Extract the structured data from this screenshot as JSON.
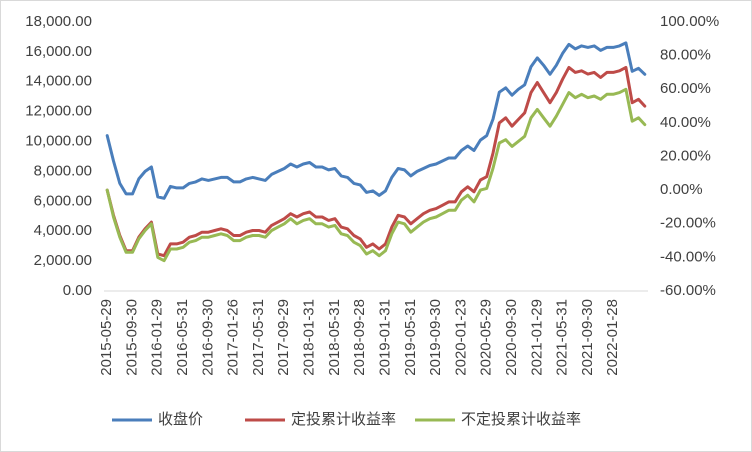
{
  "chart_data": {
    "type": "line",
    "categories": [
      "2015-05-29",
      null,
      null,
      null,
      "2015-09-30",
      null,
      null,
      null,
      "2016-01-29",
      null,
      null,
      null,
      "2016-05-31",
      null,
      null,
      null,
      "2016-09-30",
      null,
      null,
      null,
      "2017-01-26",
      null,
      null,
      null,
      "2017-05-31",
      null,
      null,
      null,
      "2017-09-29",
      null,
      null,
      null,
      "2018-01-31",
      null,
      null,
      null,
      "2018-05-31",
      null,
      null,
      null,
      "2018-09-28",
      null,
      null,
      null,
      "2019-01-31",
      null,
      null,
      null,
      "2019-05-31",
      null,
      null,
      null,
      "2019-09-30",
      null,
      null,
      null,
      "2020-01-23",
      null,
      null,
      null,
      "2020-05-29",
      null,
      null,
      null,
      "2020-09-30",
      null,
      null,
      null,
      "2021-01-29",
      null,
      null,
      null,
      "2021-05-31",
      null,
      null,
      null,
      "2021-09-30",
      null,
      null,
      null,
      "2022-01-28",
      null,
      null,
      null,
      null,
      null
    ],
    "series": [
      {
        "name": "收盘价",
        "color": "#4a7ebb",
        "values": [
          10400,
          8700,
          7200,
          6500,
          6500,
          7500,
          8000,
          8300,
          6300,
          6200,
          7000,
          6900,
          6900,
          7200,
          7300,
          7500,
          7400,
          7500,
          7600,
          7600,
          7300,
          7300,
          7500,
          7600,
          7500,
          7400,
          7800,
          8000,
          8200,
          8500,
          8300,
          8500,
          8600,
          8300,
          8300,
          8100,
          8200,
          7700,
          7600,
          7200,
          7100,
          6600,
          6700,
          6400,
          6700,
          7600,
          8200,
          8100,
          7700,
          8000,
          8200,
          8400,
          8500,
          8700,
          8900,
          8900,
          9400,
          9700,
          9400,
          10100,
          10400,
          11500,
          13300,
          13600,
          13100,
          13500,
          13800,
          15000,
          15600,
          15100,
          14500,
          15100,
          15900,
          16500,
          16200,
          16400,
          16300,
          16400,
          16100,
          16300,
          16300,
          16400,
          16600,
          14700,
          14900,
          14500
        ]
      },
      {
        "name": "定投累计收益率",
        "color": "#be4b48",
        "axis": "y2",
        "values": [
          0,
          -15,
          -27,
          -36,
          -36,
          -28,
          -23,
          -19,
          -38,
          -39,
          -32,
          -32,
          -31,
          -28,
          -27,
          -25,
          -25,
          -24,
          -23,
          -24,
          -27,
          -27,
          -25,
          -24,
          -24,
          -25,
          -21,
          -19,
          -17,
          -14,
          -16,
          -14,
          -13,
          -16,
          -16,
          -18,
          -17,
          -22,
          -23,
          -27,
          -29,
          -34,
          -32,
          -35,
          -32,
          -22,
          -15,
          -16,
          -20,
          -17,
          -14,
          -12,
          -11,
          -9,
          -7,
          -7,
          -1,
          2,
          -1,
          6,
          8,
          22,
          40,
          43,
          38,
          42,
          46,
          58,
          64,
          58,
          52,
          58,
          66,
          73,
          70,
          71,
          69,
          70,
          67,
          70,
          70,
          71,
          73,
          52,
          54,
          50
        ]
      },
      {
        "name": "不定投累计收益率",
        "color": "#98b954",
        "axis": "y2",
        "values": [
          0,
          -16,
          -28,
          -37,
          -37,
          -29,
          -24,
          -20,
          -40,
          -42,
          -35,
          -35,
          -34,
          -31,
          -30,
          -28,
          -28,
          -27,
          -26,
          -27,
          -30,
          -30,
          -28,
          -27,
          -27,
          -28,
          -24,
          -22,
          -20,
          -17,
          -20,
          -18,
          -17,
          -20,
          -20,
          -22,
          -21,
          -26,
          -27,
          -31,
          -33,
          -38,
          -36,
          -39,
          -36,
          -26,
          -19,
          -20,
          -25,
          -22,
          -19,
          -17,
          -16,
          -14,
          -12,
          -12,
          -6,
          -3,
          -7,
          0,
          1,
          13,
          28,
          30,
          26,
          29,
          32,
          43,
          48,
          43,
          38,
          44,
          51,
          58,
          55,
          57,
          55,
          56,
          54,
          57,
          57,
          58,
          60,
          41,
          43,
          39
        ]
      }
    ],
    "ylim": [
      0,
      18000
    ],
    "yticks": [
      {
        "value": 0,
        "label": "0.00"
      },
      {
        "value": 2000,
        "label": "2,000.00"
      },
      {
        "value": 4000,
        "label": "4,000.00"
      },
      {
        "value": 6000,
        "label": "6,000.00"
      },
      {
        "value": 8000,
        "label": "8,000.00"
      },
      {
        "value": 10000,
        "label": "10,000.00"
      },
      {
        "value": 12000,
        "label": "12,000.00"
      },
      {
        "value": 14000,
        "label": "14,000.00"
      },
      {
        "value": 16000,
        "label": "16,000.00"
      },
      {
        "value": 18000,
        "label": "18,000.00"
      }
    ],
    "y2lim": [
      -60,
      100
    ],
    "y2ticks": [
      {
        "value": -60,
        "label": "-60.00%"
      },
      {
        "value": -40,
        "label": "-40.00%"
      },
      {
        "value": -20,
        "label": "-20.00%"
      },
      {
        "value": 0,
        "label": "0.00%"
      },
      {
        "value": 20,
        "label": "20.00%"
      },
      {
        "value": 40,
        "label": "40.00%"
      },
      {
        "value": 60,
        "label": "60.00%"
      },
      {
        "value": 80,
        "label": "80.00%"
      },
      {
        "value": 100,
        "label": "100.00%"
      }
    ],
    "legend": "bottom"
  }
}
